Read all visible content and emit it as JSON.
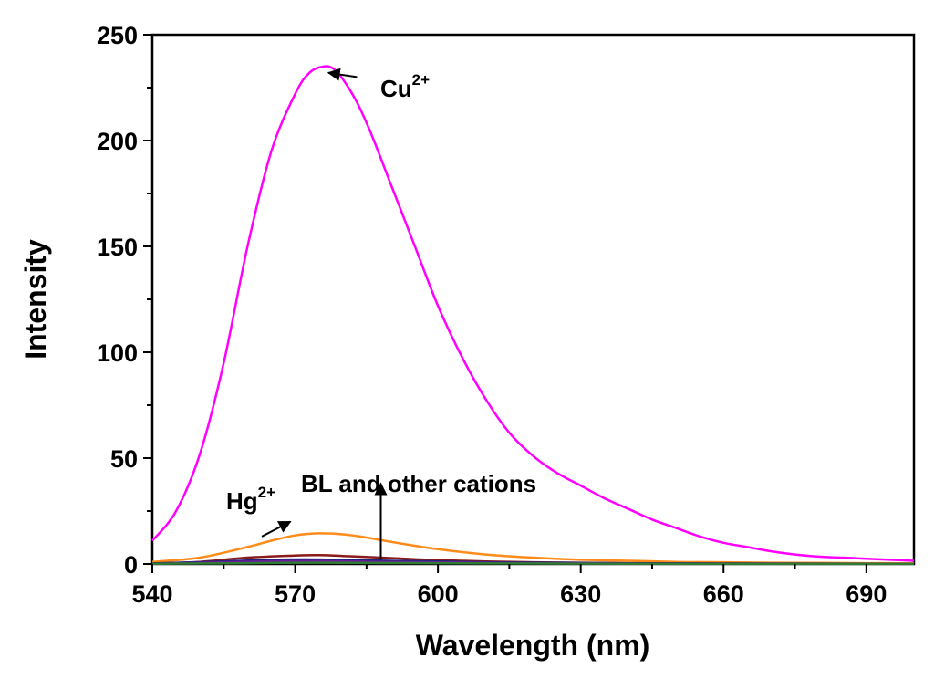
{
  "chart_data": {
    "type": "line",
    "title": "",
    "xlabel": "Wavelength (nm)",
    "ylabel": "Intensity",
    "xlim": [
      540,
      700
    ],
    "ylim": [
      0,
      250
    ],
    "x_ticks": [
      540,
      570,
      600,
      630,
      660,
      690
    ],
    "y_ticks": [
      0,
      50,
      100,
      150,
      200,
      250
    ],
    "grid": false,
    "legend": "none",
    "series": [
      {
        "color": "#ff00ff",
        "x": [
          540,
          545,
          550,
          555,
          560,
          565,
          570,
          573,
          576,
          578,
          580,
          583,
          586,
          590,
          595,
          600,
          605,
          610,
          615,
          620,
          625,
          630,
          635,
          640,
          645,
          650,
          655,
          660,
          665,
          670,
          675,
          680,
          685,
          690,
          695,
          700
        ],
        "y": [
          11,
          25,
          52,
          95,
          150,
          195,
          222,
          232,
          235,
          234,
          229,
          218,
          203,
          180,
          151,
          122,
          98,
          78,
          62,
          51,
          43,
          37,
          31,
          26,
          21,
          17,
          13,
          10,
          8,
          6,
          4.5,
          3.5,
          3,
          2.5,
          2,
          1.5
        ]
      },
      {
        "color": "#ff8c1a",
        "x": [
          540,
          550,
          560,
          565,
          570,
          575,
          580,
          585,
          590,
          600,
          610,
          620,
          630,
          640,
          650,
          660,
          670,
          680,
          690,
          700
        ],
        "y": [
          1,
          3,
          8,
          11,
          13.5,
          14.5,
          14,
          12.5,
          10.5,
          7,
          4.5,
          3,
          2,
          1.5,
          1,
          0.8,
          0.6,
          0.5,
          0.4,
          0.3
        ]
      },
      {
        "color": "#8b1a1a",
        "x": [
          540,
          550,
          560,
          570,
          575,
          580,
          590,
          600,
          610,
          620,
          640,
          660,
          700
        ],
        "y": [
          0.3,
          1,
          3,
          4,
          4.2,
          3.8,
          2.8,
          1.8,
          1.2,
          0.8,
          0.4,
          0.2,
          0.1
        ]
      },
      {
        "color": "#1a237e",
        "x": [
          540,
          555,
          565,
          575,
          590,
          610,
          640,
          700
        ],
        "y": [
          0.2,
          1.2,
          2,
          2.1,
          1.5,
          0.8,
          0.3,
          0.1
        ]
      },
      {
        "color": "#6a1b9a",
        "x": [
          540,
          555,
          565,
          575,
          590,
          610,
          640,
          700
        ],
        "y": [
          0.1,
          0.8,
          1.3,
          1.4,
          1,
          0.5,
          0.2,
          0.1
        ]
      },
      {
        "color": "#2e7d32",
        "x": [
          540,
          560,
          575,
          600,
          640,
          700
        ],
        "y": [
          0.1,
          0.4,
          0.6,
          0.4,
          0.1,
          0.05
        ]
      }
    ],
    "annotations": [
      {
        "text": "Cu",
        "sup": "2+",
        "arrow_from": [
          583,
          230
        ],
        "arrow_to": [
          577,
          232
        ]
      },
      {
        "text": "Hg",
        "sup": "2+",
        "arrow_from": [
          563,
          13
        ],
        "arrow_to": [
          569,
          20
        ]
      },
      {
        "text": "BL and other cations",
        "arrow_from": [
          588,
          2
        ],
        "arrow_to": [
          588,
          38
        ]
      }
    ]
  }
}
